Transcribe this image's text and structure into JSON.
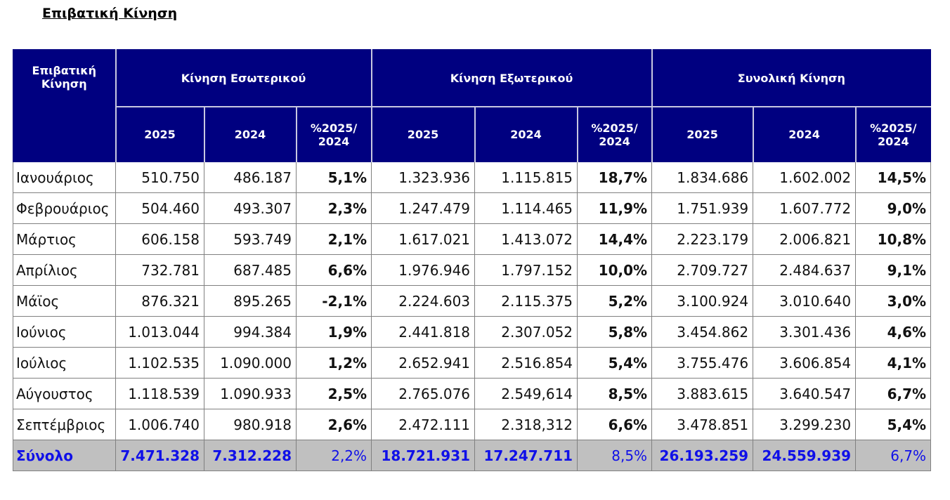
{
  "title": "Επιβατική Κίνηση",
  "header": {
    "corner": "Επιβατική Κίνηση",
    "groups": [
      "Κίνηση Εσωτερικού",
      "Κίνηση Εξωτερικού",
      "Συνολική Κίνηση"
    ],
    "subcols": [
      "2025",
      "2024",
      "%2025/ 2024"
    ]
  },
  "rows": [
    [
      "Ιανουάριος",
      "510.750",
      "486.187",
      "5,1%",
      "1.323.936",
      "1.115.815",
      "18,7%",
      "1.834.686",
      "1.602.002",
      "14,5%"
    ],
    [
      "Φεβρουάριος",
      "504.460",
      "493.307",
      "2,3%",
      "1.247.479",
      "1.114.465",
      "11,9%",
      "1.751.939",
      "1.607.772",
      "9,0%"
    ],
    [
      "Μάρτιος",
      "606.158",
      "593.749",
      "2,1%",
      "1.617.021",
      "1.413.072",
      "14,4%",
      "2.223.179",
      "2.006.821",
      "10,8%"
    ],
    [
      "Απρίλιος",
      "732.781",
      "687.485",
      "6,6%",
      "1.976.946",
      "1.797.152",
      "10,0%",
      "2.709.727",
      "2.484.637",
      "9,1%"
    ],
    [
      "Μάϊος",
      "876.321",
      "895.265",
      "-2,1%",
      "2.224.603",
      "2.115.375",
      "5,2%",
      "3.100.924",
      "3.010.640",
      "3,0%"
    ],
    [
      "Ιούνιος",
      "1.013.044",
      "994.384",
      "1,9%",
      "2.441.818",
      "2.307.052",
      "5,8%",
      "3.454.862",
      "3.301.436",
      "4,6%"
    ],
    [
      "Ιούλιος",
      "1.102.535",
      "1.090.000",
      "1,2%",
      "2.652.941",
      "2.516.854",
      "5,4%",
      "3.755.476",
      "3.606.854",
      "4,1%"
    ],
    [
      "Αύγουστος",
      "1.118.539",
      "1.090.933",
      "2,5%",
      "2.765.076",
      "2.549,614",
      "8,5%",
      "3.883.615",
      "3.640.547",
      "6,7%"
    ],
    [
      "Σεπτέμβριος",
      "1.006.740",
      "980.918",
      "2,6%",
      "2.472.111",
      "2.318,312",
      "6,6%",
      "3.478.851",
      "3.299.230",
      "5,4%"
    ]
  ],
  "total": [
    "Σύνολο",
    "7.471.328",
    "7.312.228",
    "2,2%",
    "18.721.931",
    "17.247.711",
    "8,5%",
    "26.193.259",
    "24.559.939",
    "6,7%"
  ],
  "colors": {
    "header_bg": "#000080",
    "total_bg": "#c0c0c0",
    "total_text": "#1010e8"
  }
}
